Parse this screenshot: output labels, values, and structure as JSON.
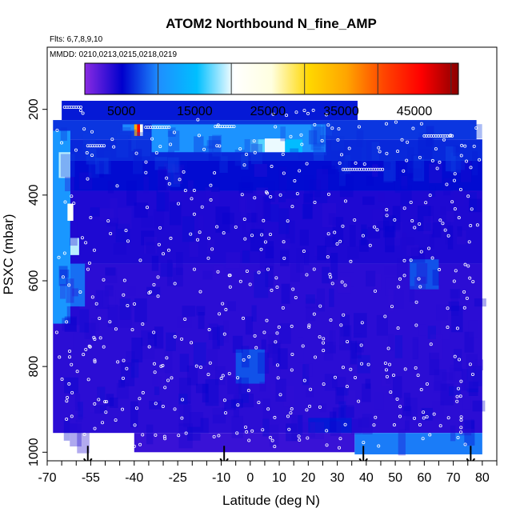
{
  "chart_data": {
    "type": "heatmap",
    "title": "ATOM2 Northbound N_fine_AMP",
    "flights_note": "Flts: 6,7,8,9,10",
    "dates_note": "MMDD: 0210,0213,0215,0218,0219",
    "xlabel": "Latitude (deg N)",
    "ylabel": "PSXC (mbar)",
    "xlim": [
      -70,
      85
    ],
    "ylim": [
      1020,
      55
    ],
    "y_reversed": true,
    "x_ticks": [
      -70,
      -55,
      -40,
      -25,
      -10,
      0,
      10,
      20,
      30,
      40,
      50,
      60,
      70,
      80
    ],
    "x_minor_step": 5,
    "y_ticks": [
      200,
      400,
      600,
      800,
      1000
    ],
    "colorbar": {
      "min": 0,
      "max": 51000,
      "ticks": [
        5000,
        15000,
        25000,
        35000,
        45000
      ],
      "bands": [
        10000,
        20000,
        30000,
        40000,
        50000
      ],
      "colors": [
        "#8A2BE2",
        "#0000CD",
        "#1E90FF",
        "#00BFFF",
        "#FFFFFF",
        "#FFFFE0",
        "#FFD700",
        "#FFA500",
        "#FF4500",
        "#FF0000",
        "#8B0000"
      ]
    },
    "background_value": 3500,
    "regions": [
      {
        "lat": [
          -65,
          37
        ],
        "p": [
          180,
          225
        ],
        "value": 6000
      },
      {
        "lat": [
          -68,
          78
        ],
        "p": [
          225,
          270
        ],
        "value": 7000
      },
      {
        "lat": [
          -68,
          80
        ],
        "p": [
          270,
          320
        ],
        "value": 6500
      },
      {
        "lat": [
          -68,
          80
        ],
        "p": [
          320,
          390
        ],
        "value": 5500
      },
      {
        "lat": [
          -68,
          80
        ],
        "p": [
          390,
          560
        ],
        "value": 4000
      },
      {
        "lat": [
          -68,
          80
        ],
        "p": [
          560,
          955
        ],
        "value": 3500
      },
      {
        "lat": [
          -40,
          36
        ],
        "p": [
          955,
          1000
        ],
        "value": 3000
      },
      {
        "lat": [
          36,
          80
        ],
        "p": [
          955,
          1005
        ],
        "value": 9500
      },
      {
        "lat": [
          -68,
          -62
        ],
        "p": [
          250,
          700
        ],
        "value": 11000
      },
      {
        "lat": [
          -66,
          -62
        ],
        "p": [
          300,
          360
        ],
        "value": 19000
      },
      {
        "lat": [
          -63,
          -61
        ],
        "p": [
          420,
          460
        ],
        "value": 21000
      },
      {
        "lat": [
          -62,
          -59
        ],
        "p": [
          500,
          540
        ],
        "value": 19000
      },
      {
        "lat": [
          -44,
          -38
        ],
        "p": [
          235,
          250
        ],
        "value": 10000
      },
      {
        "lat": [
          -40,
          -39
        ],
        "p": [
          235,
          262
        ],
        "value": 35000
      },
      {
        "lat": [
          -39,
          -38
        ],
        "p": [
          235,
          262
        ],
        "value": 46000
      },
      {
        "lat": [
          -38,
          -37
        ],
        "p": [
          235,
          262
        ],
        "value": 22000
      },
      {
        "lat": [
          -34,
          26
        ],
        "p": [
          235,
          300
        ],
        "value": 10500
      },
      {
        "lat": [
          0,
          5
        ],
        "p": [
          270,
          300
        ],
        "value": 17000
      },
      {
        "lat": [
          5,
          12
        ],
        "p": [
          268,
          300
        ],
        "value": 20000
      },
      {
        "lat": [
          12,
          18
        ],
        "p": [
          270,
          300
        ],
        "value": 15000
      },
      {
        "lat": [
          -62,
          -57
        ],
        "p": [
          560,
          660
        ],
        "value": 9000
      },
      {
        "lat": [
          -5,
          5
        ],
        "p": [
          760,
          840
        ],
        "value": 8000
      },
      {
        "lat": [
          55,
          65
        ],
        "p": [
          550,
          620
        ],
        "value": 8000
      },
      {
        "lat": [
          20,
          35
        ],
        "p": [
          920,
          955
        ],
        "value": 6000
      }
    ],
    "white_gaps": [
      {
        "lat": [
          -68,
          -43
        ],
        "p": [
          960,
          1020
        ]
      }
    ],
    "sample_markers": [
      {
        "lat": -56,
        "p": 1000
      },
      {
        "lat": -9,
        "p": 1000
      },
      {
        "lat": 39,
        "p": 1000
      },
      {
        "lat": 76,
        "p": 1000
      }
    ]
  }
}
